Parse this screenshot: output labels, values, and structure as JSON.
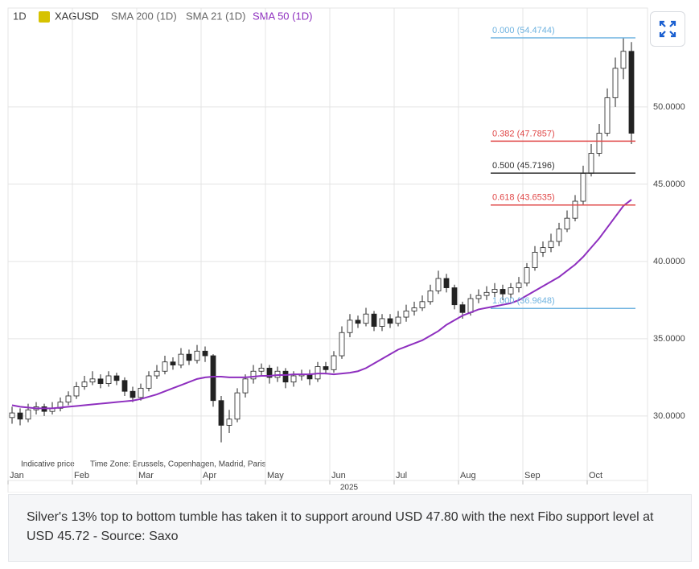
{
  "chart_data": {
    "type": "candlestick",
    "interval": "1D",
    "symbol": "XAGUSD",
    "inactive_indicators": [
      "SMA 200 (1D)",
      "SMA 21 (1D)"
    ],
    "categories": [
      "Jan",
      null,
      null,
      null,
      null,
      null,
      null,
      null,
      "Feb",
      null,
      null,
      null,
      null,
      null,
      null,
      null,
      "Mar",
      null,
      null,
      null,
      null,
      null,
      null,
      null,
      "Apr",
      null,
      null,
      null,
      null,
      null,
      null,
      null,
      "May",
      null,
      null,
      null,
      null,
      null,
      null,
      null,
      "Jun",
      null,
      null,
      null,
      null,
      null,
      null,
      null,
      "Jul",
      null,
      null,
      null,
      null,
      null,
      null,
      null,
      "Aug",
      null,
      null,
      null,
      null,
      null,
      null,
      null,
      "Sep",
      null,
      null,
      null,
      null,
      null,
      null,
      null,
      "Oct",
      null,
      null,
      null,
      null,
      null
    ],
    "open": [
      29.9,
      30.2,
      29.8,
      30.4,
      30.6,
      30.3,
      30.5,
      30.9,
      31.3,
      31.9,
      32.2,
      32.4,
      32.1,
      32.6,
      32.3,
      31.6,
      31.2,
      31.8,
      32.6,
      32.9,
      33.5,
      33.3,
      34.0,
      33.6,
      34.2,
      33.9,
      31.0,
      29.4,
      29.8,
      31.5,
      32.4,
      32.9,
      33.1,
      32.5,
      32.9,
      32.2,
      32.6,
      32.7,
      32.4,
      33.2,
      33.0,
      33.9,
      35.4,
      36.2,
      36.0,
      36.6,
      35.8,
      36.3,
      36.0,
      36.4,
      36.8,
      37.0,
      37.4,
      38.1,
      38.9,
      38.3,
      37.2,
      36.7,
      37.6,
      37.8,
      38.0,
      38.2,
      37.9,
      38.3,
      38.6,
      39.6,
      40.6,
      40.9,
      41.3,
      42.1,
      42.8,
      43.9,
      45.7,
      47.0,
      48.3,
      50.6,
      52.5,
      53.6
    ],
    "high": [
      30.6,
      30.5,
      30.8,
      30.9,
      30.8,
      30.9,
      31.2,
      31.6,
      32.2,
      32.6,
      32.9,
      32.7,
      32.9,
      32.8,
      32.5,
      31.9,
      32.1,
      32.9,
      33.3,
      33.9,
      33.8,
      34.4,
      34.3,
      34.6,
      34.5,
      34.0,
      31.3,
      30.4,
      31.8,
      32.7,
      33.3,
      33.4,
      33.3,
      33.2,
      33.1,
      32.9,
      33.0,
      33.0,
      33.5,
      33.5,
      34.2,
      35.8,
      36.6,
      36.5,
      37.0,
      36.8,
      36.6,
      36.6,
      36.8,
      37.2,
      37.4,
      37.8,
      38.5,
      39.4,
      39.2,
      38.5,
      37.4,
      37.9,
      38.2,
      38.4,
      38.6,
      38.5,
      38.6,
      39.0,
      39.9,
      41.0,
      41.3,
      41.8,
      42.5,
      43.3,
      44.3,
      46.2,
      47.6,
      48.9,
      51.2,
      53.2,
      54.47,
      54.2
    ],
    "low": [
      29.5,
      29.4,
      29.6,
      30.1,
      30.0,
      30.1,
      30.3,
      30.7,
      31.1,
      31.7,
      32.0,
      31.8,
      31.9,
      32.0,
      31.3,
      30.9,
      31.0,
      31.6,
      32.4,
      32.7,
      33.0,
      33.1,
      33.3,
      33.4,
      33.5,
      30.6,
      28.3,
      28.9,
      29.6,
      31.2,
      32.1,
      32.6,
      32.1,
      32.2,
      31.8,
      31.9,
      32.3,
      32.0,
      32.2,
      32.7,
      32.8,
      33.7,
      35.1,
      35.7,
      35.8,
      35.5,
      35.5,
      35.7,
      35.8,
      36.1,
      36.5,
      36.8,
      37.2,
      37.9,
      38.0,
      36.9,
      36.3,
      36.5,
      37.3,
      37.5,
      37.7,
      37.5,
      37.6,
      38.0,
      38.4,
      39.4,
      40.3,
      40.6,
      41.0,
      41.9,
      42.6,
      43.7,
      45.5,
      46.8,
      48.1,
      50.0,
      51.8,
      47.6
    ],
    "close": [
      30.2,
      29.8,
      30.4,
      30.6,
      30.3,
      30.5,
      30.9,
      31.3,
      31.9,
      32.2,
      32.4,
      32.1,
      32.6,
      32.3,
      31.6,
      31.2,
      31.8,
      32.6,
      32.9,
      33.5,
      33.3,
      34.0,
      33.6,
      34.2,
      33.9,
      31.0,
      29.4,
      29.8,
      31.5,
      32.4,
      32.9,
      33.1,
      32.5,
      32.9,
      32.2,
      32.6,
      32.7,
      32.4,
      33.2,
      33.0,
      33.9,
      35.4,
      36.2,
      36.0,
      36.6,
      35.8,
      36.3,
      36.0,
      36.4,
      36.8,
      37.0,
      37.4,
      38.1,
      38.9,
      38.3,
      37.2,
      36.7,
      37.6,
      37.8,
      38.0,
      38.2,
      37.9,
      38.3,
      38.6,
      39.6,
      40.6,
      40.9,
      41.3,
      42.1,
      42.8,
      43.9,
      45.7,
      47.0,
      48.3,
      50.6,
      52.5,
      53.6,
      48.3
    ],
    "series": [
      {
        "name": "SMA 50 (1D)",
        "color": "#8e2fbf",
        "values": [
          30.7,
          30.6,
          30.55,
          30.5,
          30.5,
          30.5,
          30.55,
          30.6,
          30.65,
          30.7,
          30.75,
          30.8,
          30.85,
          30.9,
          30.95,
          31.0,
          31.1,
          31.25,
          31.4,
          31.6,
          31.8,
          32.0,
          32.2,
          32.4,
          32.5,
          32.55,
          32.55,
          32.5,
          32.5,
          32.5,
          32.55,
          32.6,
          32.6,
          32.65,
          32.65,
          32.7,
          32.7,
          32.7,
          32.75,
          32.75,
          32.7,
          32.75,
          32.8,
          32.9,
          33.1,
          33.4,
          33.7,
          34.0,
          34.3,
          34.5,
          34.7,
          34.9,
          35.2,
          35.5,
          35.9,
          36.2,
          36.5,
          36.7,
          36.9,
          37.0,
          37.1,
          37.2,
          37.3,
          37.5,
          37.8,
          38.1,
          38.4,
          38.7,
          39.0,
          39.4,
          39.8,
          40.3,
          40.9,
          41.5,
          42.2,
          42.9,
          43.6,
          44.0
        ]
      }
    ],
    "fib_levels": [
      {
        "label": "0.000 (54.4744)",
        "value": 54.4744,
        "color": "#6fb3e0"
      },
      {
        "label": "0.382 (47.7857)",
        "value": 47.7857,
        "color": "#e04848"
      },
      {
        "label": "0.500 (45.7196)",
        "value": 45.7196,
        "color": "#333333"
      },
      {
        "label": "0.618 (43.6535)",
        "value": 43.6535,
        "color": "#e04848"
      },
      {
        "label": "1.000 (36.9648)",
        "value": 36.9648,
        "color": "#6fb3e0"
      }
    ],
    "ylim": [
      25.83,
      56.4
    ],
    "yticks": [
      {
        "value": 30,
        "label": "30.0000"
      },
      {
        "value": 35,
        "label": "35.0000"
      },
      {
        "value": 40,
        "label": "40.0000"
      },
      {
        "value": 45,
        "label": "45.0000"
      },
      {
        "value": 50,
        "label": "50.0000"
      }
    ],
    "grid": true,
    "x_label": "2025",
    "notes": [
      "Indicative price",
      "Time Zone: Brussels, Copenhagen, Madrid, Paris"
    ]
  },
  "caption": "Silver's 13% top to bottom tumble has taken it to support around USD 47.80 with the next Fibo support level at USD 45.72 - Source: Saxo"
}
